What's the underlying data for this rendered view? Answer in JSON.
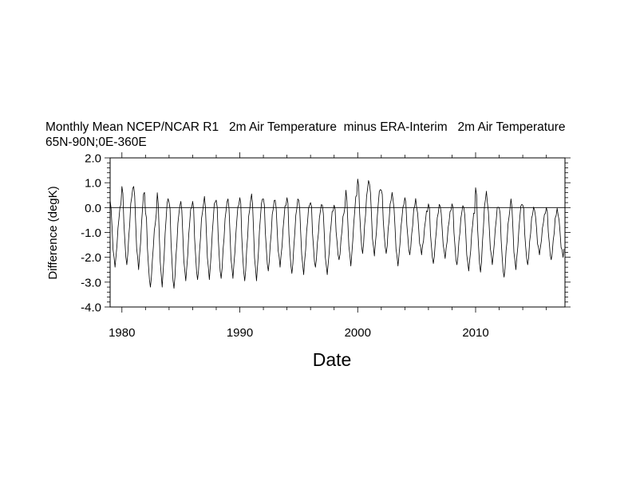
{
  "chart_data": {
    "type": "line",
    "title": "Monthly Mean NCEP/NCAR R1   2m Air Temperature  minus ERA-Interim   2m Air Temperature",
    "subtitle": "65N-90N;0E-360E",
    "xlabel": "Date",
    "ylabel": "Difference (degK)",
    "xlim": [
      1979.0,
      2017.58
    ],
    "ylim": [
      -4.0,
      2.0
    ],
    "x_ticks": [
      1980,
      1990,
      2000,
      2010
    ],
    "x_tick_labels": [
      "1980",
      "1990",
      "2000",
      "2010"
    ],
    "y_ticks": [
      -4.0,
      -3.0,
      -2.0,
      -1.0,
      0.0,
      1.0,
      2.0
    ],
    "y_tick_labels": [
      "-4.0",
      "-3.0",
      "-2.0",
      "-1.0",
      "0.0",
      "1.0",
      "2.0"
    ],
    "reference_line": 0.0,
    "line_color": "#000000",
    "series": [
      {
        "yearly_peaks": [
          0.3,
          0.85,
          0.85,
          -0.2,
          0.6,
          0.2,
          0.25,
          0.25,
          0.45,
          0.3,
          0.35,
          0.4,
          0.55,
          0.35,
          0.3,
          0.4,
          0.3,
          0.2,
          0.1,
          0.1,
          0.7,
          1.15,
          0.95,
          0.7,
          0.3,
          0.4,
          0.0,
          0.15,
          0.05,
          0.15,
          0.0,
          0.8,
          0.2,
          0.0,
          0.35,
          0.1,
          -0.1,
          0.0,
          -0.3
        ],
        "yearly_troughs": [
          -2.4,
          -2.3,
          -2.5,
          -3.2,
          -3.2,
          -3.25,
          -2.95,
          -2.9,
          -2.9,
          -2.85,
          -2.85,
          -2.95,
          -2.95,
          -2.55,
          -2.4,
          -2.65,
          -2.7,
          -2.4,
          -2.7,
          -2.1,
          -2.35,
          -1.85,
          -1.95,
          -1.85,
          -2.35,
          -1.9,
          -1.9,
          -2.25,
          -2.05,
          -2.3,
          -2.55,
          -2.6,
          -2.3,
          -2.8,
          -2.5,
          -2.3,
          -1.9,
          -2.1,
          -2.0
        ]
      }
    ]
  }
}
